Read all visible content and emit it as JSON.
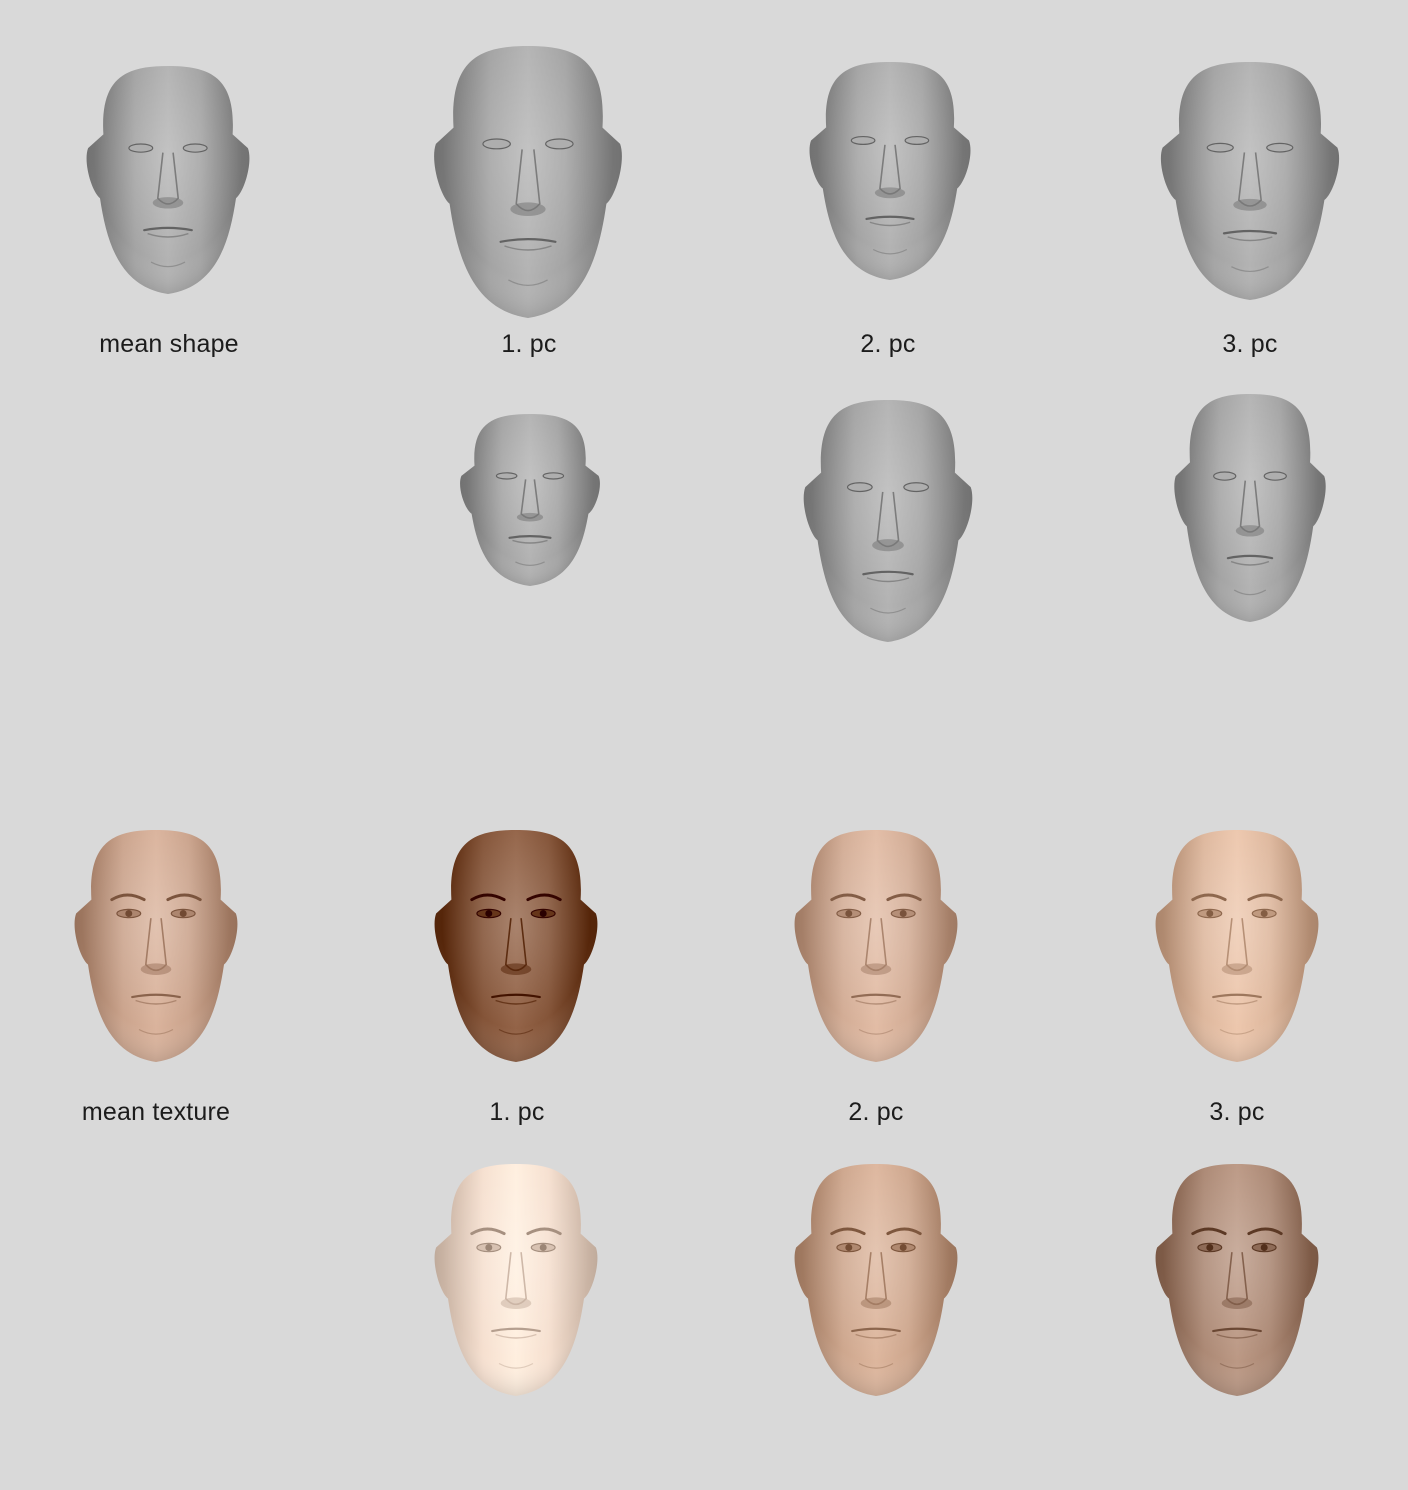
{
  "shape_section": {
    "labels": [
      "mean shape",
      "1. pc",
      "2. pc",
      "3. pc"
    ],
    "faces": [
      {
        "id": "mean-shape",
        "kind": "shape",
        "tone": "#9a9a9a"
      },
      {
        "id": "pc1-pos",
        "kind": "shape",
        "tone": "#9a9a9a"
      },
      {
        "id": "pc2-pos",
        "kind": "shape",
        "tone": "#9a9a9a"
      },
      {
        "id": "pc3-pos",
        "kind": "shape",
        "tone": "#9a9a9a"
      },
      {
        "id": "pc1-neg",
        "kind": "shape",
        "tone": "#9a9a9a"
      },
      {
        "id": "pc2-neg",
        "kind": "shape",
        "tone": "#9a9a9a"
      },
      {
        "id": "pc3-neg",
        "kind": "shape",
        "tone": "#9a9a9a"
      }
    ]
  },
  "texture_section": {
    "labels": [
      "mean texture",
      "1. pc",
      "2. pc",
      "3. pc"
    ],
    "faces": [
      {
        "id": "mean-texture",
        "kind": "texture",
        "tone": "#c19a83"
      },
      {
        "id": "pc1-pos",
        "kind": "texture",
        "tone": "#7a4a2e"
      },
      {
        "id": "pc2-pos",
        "kind": "texture",
        "tone": "#c9a38c"
      },
      {
        "id": "pc3-pos",
        "kind": "texture",
        "tone": "#d4ae94"
      },
      {
        "id": "pc1-neg",
        "kind": "texture",
        "tone": "#ecd6c6"
      },
      {
        "id": "pc2-neg",
        "kind": "texture",
        "tone": "#c49d84"
      },
      {
        "id": "pc3-neg",
        "kind": "texture",
        "tone": "#a27f6b"
      }
    ]
  },
  "colors": {
    "background": "#d9d9d9",
    "label_text": "#1c1c1c"
  }
}
